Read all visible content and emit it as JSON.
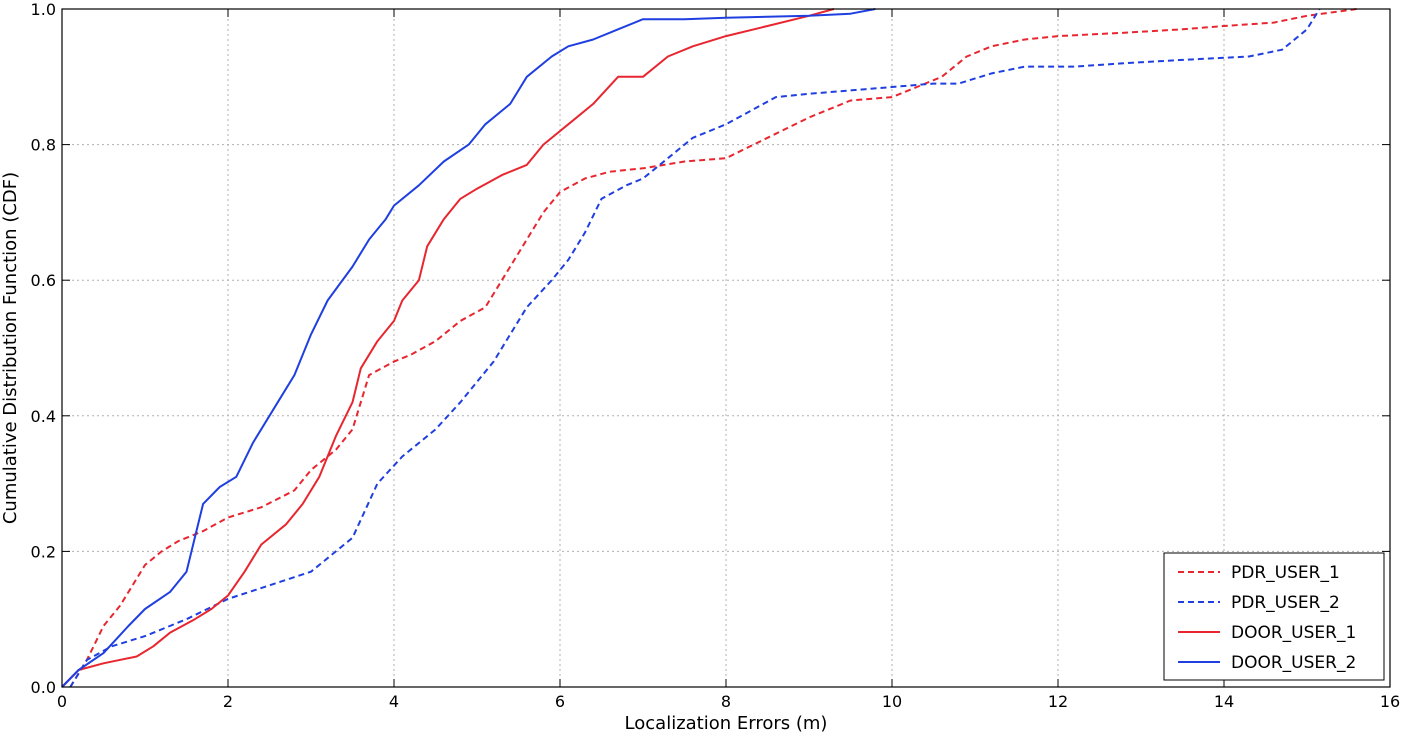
{
  "chart_data": {
    "type": "line",
    "title": "",
    "xlabel": "Localization Errors (m)",
    "ylabel": "Cumulative Distribution Function (CDF)",
    "xlim": [
      0,
      16
    ],
    "ylim": [
      0,
      1
    ],
    "x_ticks": [
      0,
      2,
      4,
      6,
      8,
      10,
      12,
      14,
      16
    ],
    "y_ticks": [
      0.0,
      0.2,
      0.4,
      0.6,
      0.8,
      1.0
    ],
    "x_tick_labels": [
      "0",
      "2",
      "4",
      "6",
      "8",
      "10",
      "12",
      "14",
      "16"
    ],
    "y_tick_labels": [
      "0.0",
      "0.2",
      "0.4",
      "0.6",
      "0.8",
      "1.0"
    ],
    "grid": true,
    "legend_position": "bottom-right",
    "series": [
      {
        "name": "PDR_USER_1",
        "color": "#e8262f",
        "style": "dashed",
        "points": [
          [
            0.1,
            0.0
          ],
          [
            0.3,
            0.04
          ],
          [
            0.5,
            0.09
          ],
          [
            0.7,
            0.12
          ],
          [
            0.85,
            0.15
          ],
          [
            1.0,
            0.18
          ],
          [
            1.2,
            0.2
          ],
          [
            1.4,
            0.215
          ],
          [
            1.7,
            0.23
          ],
          [
            2.0,
            0.25
          ],
          [
            2.4,
            0.265
          ],
          [
            2.8,
            0.29
          ],
          [
            3.0,
            0.32
          ],
          [
            3.3,
            0.35
          ],
          [
            3.5,
            0.38
          ],
          [
            3.6,
            0.42
          ],
          [
            3.7,
            0.46
          ],
          [
            4.0,
            0.48
          ],
          [
            4.2,
            0.49
          ],
          [
            4.5,
            0.51
          ],
          [
            4.8,
            0.54
          ],
          [
            5.1,
            0.56
          ],
          [
            5.3,
            0.6
          ],
          [
            5.5,
            0.64
          ],
          [
            5.8,
            0.7
          ],
          [
            6.0,
            0.73
          ],
          [
            6.3,
            0.75
          ],
          [
            6.6,
            0.76
          ],
          [
            7.0,
            0.765
          ],
          [
            7.5,
            0.775
          ],
          [
            8.0,
            0.78
          ],
          [
            8.5,
            0.81
          ],
          [
            9.0,
            0.84
          ],
          [
            9.5,
            0.865
          ],
          [
            10.0,
            0.87
          ],
          [
            10.3,
            0.885
          ],
          [
            10.6,
            0.9
          ],
          [
            10.9,
            0.93
          ],
          [
            11.2,
            0.945
          ],
          [
            11.6,
            0.955
          ],
          [
            12.0,
            0.96
          ],
          [
            12.8,
            0.965
          ],
          [
            13.5,
            0.97
          ],
          [
            14.0,
            0.975
          ],
          [
            14.6,
            0.98
          ],
          [
            15.0,
            0.99
          ],
          [
            15.6,
            1.0
          ]
        ]
      },
      {
        "name": "PDR_USER_2",
        "color": "#1f3fe0",
        "style": "dashed",
        "points": [
          [
            0.1,
            0.0
          ],
          [
            0.3,
            0.04
          ],
          [
            0.6,
            0.06
          ],
          [
            1.0,
            0.075
          ],
          [
            1.5,
            0.1
          ],
          [
            2.0,
            0.13
          ],
          [
            2.5,
            0.15
          ],
          [
            3.0,
            0.17
          ],
          [
            3.5,
            0.22
          ],
          [
            3.8,
            0.3
          ],
          [
            4.1,
            0.34
          ],
          [
            4.5,
            0.38
          ],
          [
            4.8,
            0.42
          ],
          [
            5.0,
            0.45
          ],
          [
            5.2,
            0.48
          ],
          [
            5.4,
            0.52
          ],
          [
            5.6,
            0.56
          ],
          [
            5.9,
            0.6
          ],
          [
            6.1,
            0.63
          ],
          [
            6.3,
            0.67
          ],
          [
            6.5,
            0.72
          ],
          [
            6.8,
            0.74
          ],
          [
            7.0,
            0.75
          ],
          [
            7.3,
            0.78
          ],
          [
            7.6,
            0.81
          ],
          [
            8.0,
            0.83
          ],
          [
            8.3,
            0.85
          ],
          [
            8.6,
            0.87
          ],
          [
            9.0,
            0.875
          ],
          [
            9.5,
            0.88
          ],
          [
            10.0,
            0.885
          ],
          [
            10.5,
            0.89
          ],
          [
            10.8,
            0.89
          ],
          [
            11.2,
            0.905
          ],
          [
            11.6,
            0.915
          ],
          [
            12.2,
            0.915
          ],
          [
            12.8,
            0.92
          ],
          [
            13.5,
            0.925
          ],
          [
            14.3,
            0.93
          ],
          [
            14.7,
            0.94
          ],
          [
            15.0,
            0.97
          ],
          [
            15.15,
            1.0
          ]
        ]
      },
      {
        "name": "DOOR_USER_1",
        "color": "#e8262f",
        "style": "solid",
        "points": [
          [
            0.0,
            0.0
          ],
          [
            0.2,
            0.025
          ],
          [
            0.5,
            0.035
          ],
          [
            0.9,
            0.045
          ],
          [
            1.1,
            0.06
          ],
          [
            1.3,
            0.08
          ],
          [
            1.6,
            0.1
          ],
          [
            1.8,
            0.115
          ],
          [
            2.0,
            0.135
          ],
          [
            2.2,
            0.17
          ],
          [
            2.4,
            0.21
          ],
          [
            2.7,
            0.24
          ],
          [
            2.9,
            0.27
          ],
          [
            3.1,
            0.31
          ],
          [
            3.3,
            0.37
          ],
          [
            3.5,
            0.42
          ],
          [
            3.6,
            0.47
          ],
          [
            3.8,
            0.51
          ],
          [
            4.0,
            0.54
          ],
          [
            4.1,
            0.57
          ],
          [
            4.3,
            0.6
          ],
          [
            4.4,
            0.65
          ],
          [
            4.6,
            0.69
          ],
          [
            4.8,
            0.72
          ],
          [
            5.0,
            0.735
          ],
          [
            5.3,
            0.755
          ],
          [
            5.6,
            0.77
          ],
          [
            5.8,
            0.8
          ],
          [
            6.1,
            0.83
          ],
          [
            6.4,
            0.86
          ],
          [
            6.7,
            0.9
          ],
          [
            7.0,
            0.9
          ],
          [
            7.3,
            0.93
          ],
          [
            7.6,
            0.945
          ],
          [
            8.0,
            0.96
          ],
          [
            8.5,
            0.975
          ],
          [
            9.0,
            0.99
          ],
          [
            9.3,
            1.0
          ]
        ]
      },
      {
        "name": "DOOR_USER_2",
        "color": "#1f3fe0",
        "style": "solid",
        "points": [
          [
            0.0,
            0.0
          ],
          [
            0.2,
            0.025
          ],
          [
            0.5,
            0.05
          ],
          [
            0.8,
            0.09
          ],
          [
            1.0,
            0.115
          ],
          [
            1.3,
            0.14
          ],
          [
            1.5,
            0.17
          ],
          [
            1.6,
            0.22
          ],
          [
            1.7,
            0.27
          ],
          [
            1.9,
            0.295
          ],
          [
            2.1,
            0.31
          ],
          [
            2.3,
            0.36
          ],
          [
            2.6,
            0.42
          ],
          [
            2.8,
            0.46
          ],
          [
            3.0,
            0.52
          ],
          [
            3.2,
            0.57
          ],
          [
            3.5,
            0.62
          ],
          [
            3.7,
            0.66
          ],
          [
            3.9,
            0.69
          ],
          [
            4.0,
            0.71
          ],
          [
            4.3,
            0.74
          ],
          [
            4.6,
            0.775
          ],
          [
            4.9,
            0.8
          ],
          [
            5.1,
            0.83
          ],
          [
            5.4,
            0.86
          ],
          [
            5.6,
            0.9
          ],
          [
            5.9,
            0.93
          ],
          [
            6.1,
            0.945
          ],
          [
            6.4,
            0.955
          ],
          [
            6.7,
            0.97
          ],
          [
            7.0,
            0.985
          ],
          [
            7.5,
            0.985
          ],
          [
            8.0,
            0.987
          ],
          [
            9.0,
            0.99
          ],
          [
            9.5,
            0.993
          ],
          [
            9.8,
            1.0
          ]
        ]
      }
    ]
  }
}
